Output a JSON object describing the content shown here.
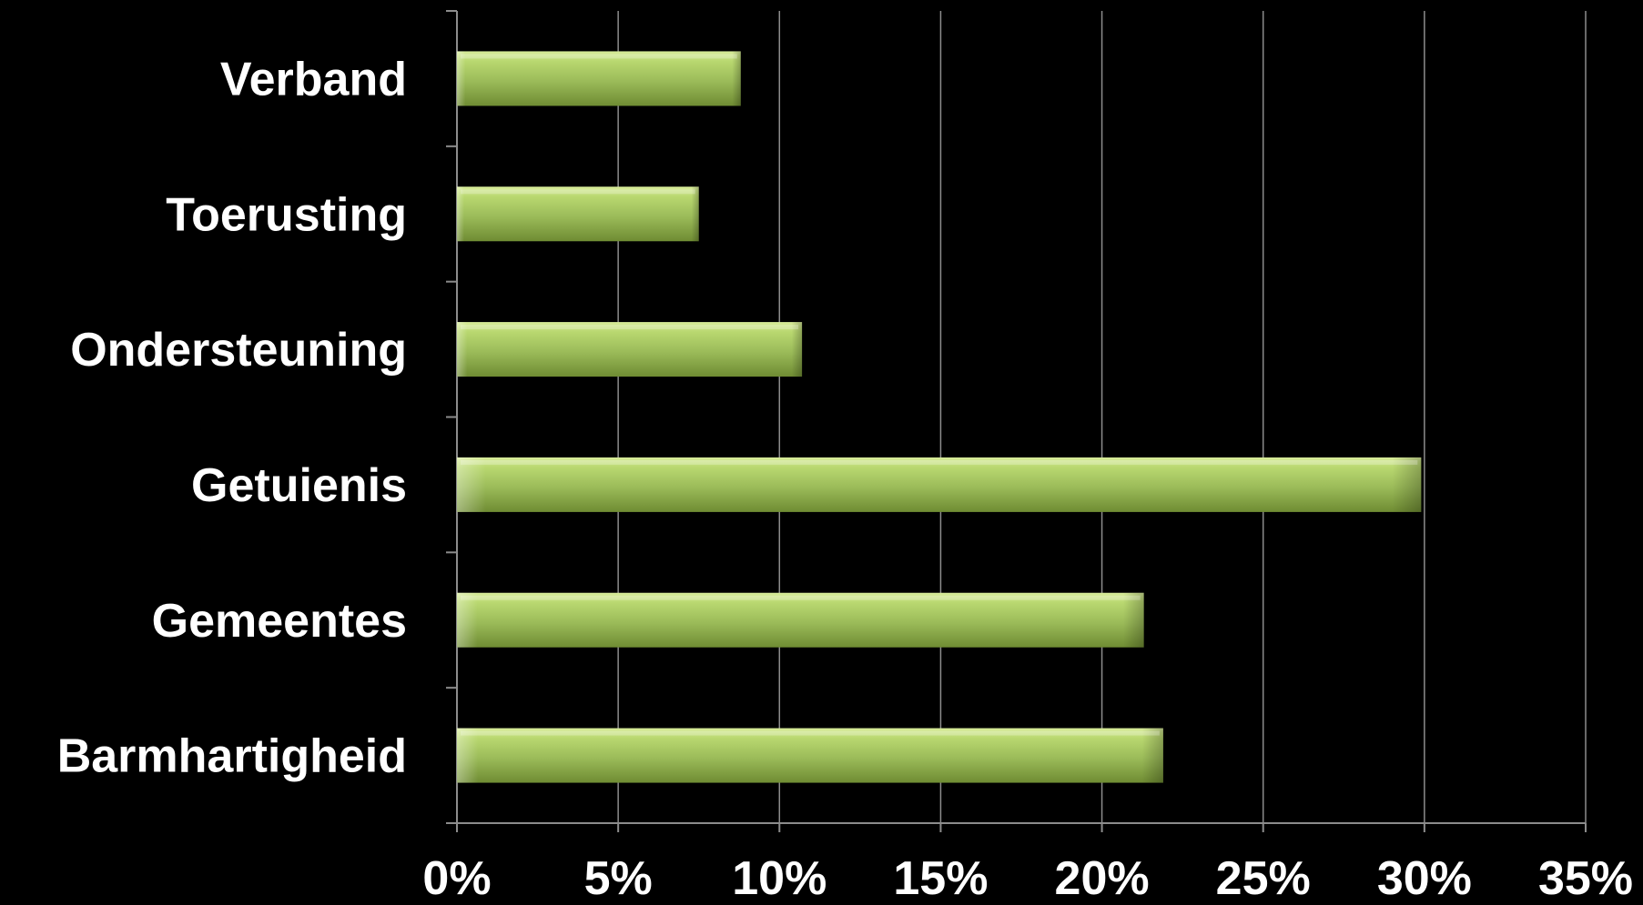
{
  "chart_data": {
    "type": "bar",
    "orientation": "horizontal",
    "categories": [
      "Verband",
      "Toerusting",
      "Ondersteuning",
      "Getuienis",
      "Gemeentes",
      "Barmhartigheid"
    ],
    "values": [
      8.8,
      7.5,
      10.7,
      29.9,
      21.3,
      21.9
    ],
    "xlim": [
      0,
      35
    ],
    "xticks": [
      0,
      5,
      10,
      15,
      20,
      25,
      30,
      35
    ],
    "xtick_labels": [
      "0%",
      "5%",
      "10%",
      "15%",
      "20%",
      "25%",
      "30%",
      "35%"
    ],
    "grid": "vertical",
    "bar_color": "#9BBB59",
    "background": "#000000",
    "title": "",
    "xlabel": "",
    "ylabel": ""
  }
}
